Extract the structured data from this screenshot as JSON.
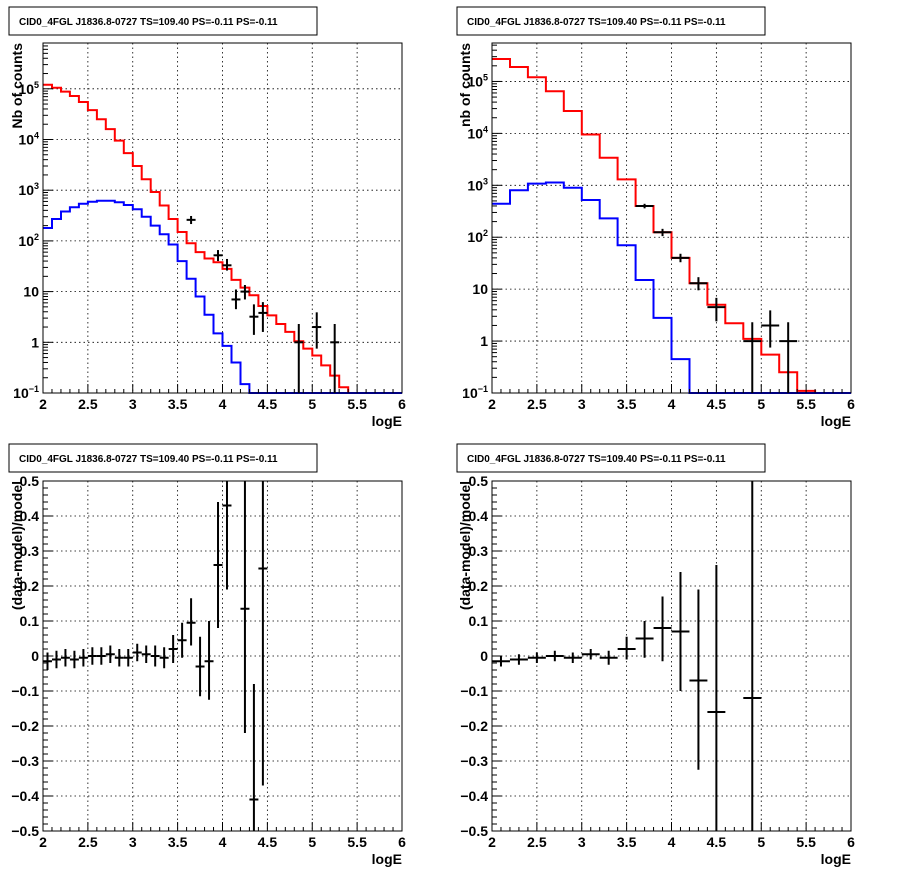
{
  "chart_data": [
    {
      "id": "top-left",
      "type": "line",
      "title": "CID0_4FGL J1836.8-0727 TS=109.40 PS=-0.11 PS=-0.11",
      "xlabel": "logE",
      "ylabel": "Nb of counts",
      "log_y": true,
      "grid": true,
      "xlim": [
        2,
        6
      ],
      "ylim": [
        0.1,
        800000
      ],
      "x_ticks": [
        "2",
        "2.5",
        "3",
        "3.5",
        "4",
        "4.5",
        "5",
        "5.5",
        "6"
      ],
      "y_ticks": [
        {
          "value": 0.1,
          "base": "10",
          "exp": "−1"
        },
        {
          "value": 1,
          "label": "1"
        },
        {
          "value": 10,
          "label": "10"
        },
        {
          "value": 100,
          "base": "10",
          "exp": "2"
        },
        {
          "value": 1000,
          "base": "10",
          "exp": "3"
        },
        {
          "value": 10000,
          "base": "10",
          "exp": "4"
        },
        {
          "value": 100000,
          "base": "10",
          "exp": "5"
        }
      ],
      "bin_edges": [
        2.0,
        2.1,
        2.2,
        2.3,
        2.4,
        2.5,
        2.6,
        2.7,
        2.8,
        2.9,
        3.0,
        3.1,
        3.2,
        3.3,
        3.4,
        3.5,
        3.6,
        3.7,
        3.8,
        3.9,
        4.0,
        4.1,
        4.2,
        4.3,
        4.4,
        4.5,
        4.6,
        4.7,
        4.8,
        4.9,
        5.0,
        5.1,
        5.2,
        5.3,
        5.4,
        5.5,
        5.6,
        5.7,
        5.8,
        5.9,
        6.0
      ],
      "series": [
        {
          "color": "#ff0000",
          "values": [
            120000,
            105000,
            88000,
            72000,
            55000,
            38000,
            25000,
            16000,
            9500,
            5400,
            3000,
            1650,
            920,
            500,
            270,
            150,
            90,
            60,
            45,
            38,
            28,
            17,
            12,
            8.5,
            5.2,
            3.4,
            2.3,
            1.6,
            1.05,
            0.75,
            0.55,
            0.35,
            0.22,
            0.13,
            0.1,
            0.1,
            0.1,
            0.1,
            0.1,
            0.1
          ]
        },
        {
          "color": "#0000ff",
          "values": [
            180,
            270,
            380,
            460,
            540,
            590,
            620,
            620,
            580,
            510,
            420,
            300,
            200,
            135,
            85,
            40,
            18,
            8,
            3.5,
            1.5,
            0.85,
            0.4,
            0.15,
            0.1,
            0.1,
            0.1,
            0.1,
            0.1,
            0.1,
            0.1,
            0.1,
            0.1,
            0.1,
            0.1,
            0.1,
            0.1,
            0.1,
            0.1,
            0.1,
            0.1
          ]
        }
      ],
      "points": [
        {
          "x": 3.65,
          "y": 260,
          "xerr": 0.05,
          "ylo": 215,
          "yhi": 310
        },
        {
          "x": 3.95,
          "y": 52,
          "xerr": 0.05,
          "ylo": 40,
          "yhi": 66
        },
        {
          "x": 4.05,
          "y": 33,
          "xerr": 0.05,
          "ylo": 26,
          "yhi": 44
        },
        {
          "x": 4.15,
          "y": 7,
          "xerr": 0.05,
          "ylo": 4.5,
          "yhi": 11
        },
        {
          "x": 4.25,
          "y": 10,
          "xerr": 0.05,
          "ylo": 7,
          "yhi": 13.5
        },
        {
          "x": 4.35,
          "y": 3.2,
          "xerr": 0.05,
          "ylo": 1.4,
          "yhi": 5.6
        },
        {
          "x": 4.45,
          "y": 3.8,
          "xerr": 0.05,
          "ylo": 1.6,
          "yhi": 6.2
        },
        {
          "x": 4.85,
          "y": 1.0,
          "xerr": 0.05,
          "ylo": 0.1,
          "yhi": 2.3
        },
        {
          "x": 5.05,
          "y": 2.0,
          "xerr": 0.05,
          "ylo": 0.75,
          "yhi": 3.9
        },
        {
          "x": 5.25,
          "y": 1.0,
          "xerr": 0.05,
          "ylo": 0.1,
          "yhi": 2.3
        }
      ]
    },
    {
      "id": "top-right",
      "type": "line",
      "title": "CID0_4FGL J1836.8-0727 TS=109.40 PS=-0.11 PS=-0.11",
      "xlabel": "logE",
      "ylabel": "nb of counts",
      "log_y": true,
      "grid": true,
      "xlim": [
        2,
        6
      ],
      "ylim": [
        0.1,
        550000
      ],
      "x_ticks": [
        "2",
        "2.5",
        "3",
        "3.5",
        "4",
        "4.5",
        "5",
        "5.5",
        "6"
      ],
      "y_ticks": [
        {
          "value": 0.1,
          "base": "10",
          "exp": "−1"
        },
        {
          "value": 1,
          "label": "1"
        },
        {
          "value": 10,
          "label": "10"
        },
        {
          "value": 100,
          "base": "10",
          "exp": "2"
        },
        {
          "value": 1000,
          "base": "10",
          "exp": "3"
        },
        {
          "value": 10000,
          "base": "10",
          "exp": "4"
        },
        {
          "value": 100000,
          "base": "10",
          "exp": "5"
        }
      ],
      "bin_edges": [
        2.0,
        2.2,
        2.4,
        2.6,
        2.8,
        3.0,
        3.2,
        3.4,
        3.6,
        3.8,
        4.0,
        4.2,
        4.4,
        4.6,
        4.8,
        5.0,
        5.2,
        5.4,
        5.6,
        5.8,
        6.0
      ],
      "series": [
        {
          "color": "#ff0000",
          "values": [
            270000,
            190000,
            120000,
            65000,
            27000,
            9500,
            3400,
            1300,
            400,
            125,
            40,
            13,
            5,
            2.2,
            1.1,
            0.55,
            0.25,
            0.11,
            0.1,
            0.1
          ]
        },
        {
          "color": "#0000ff",
          "values": [
            440,
            800,
            1080,
            1130,
            900,
            520,
            230,
            70,
            15,
            2.8,
            0.45,
            0.1,
            0.1,
            0.1,
            0.1,
            0.1,
            0.1,
            0.1,
            0.1,
            0.1
          ]
        }
      ],
      "points": [
        {
          "x": 3.7,
          "y": 400,
          "xerr": 0.1,
          "ylo": 360,
          "yhi": 440
        },
        {
          "x": 3.9,
          "y": 125,
          "xerr": 0.1,
          "ylo": 105,
          "yhi": 145
        },
        {
          "x": 4.1,
          "y": 40,
          "xerr": 0.1,
          "ylo": 33,
          "yhi": 48
        },
        {
          "x": 4.3,
          "y": 13,
          "xerr": 0.1,
          "ylo": 9.5,
          "yhi": 17
        },
        {
          "x": 4.5,
          "y": 4.5,
          "xerr": 0.1,
          "ylo": 2.4,
          "yhi": 6.8
        },
        {
          "x": 4.9,
          "y": 1.0,
          "xerr": 0.1,
          "ylo": 0.1,
          "yhi": 2.3
        },
        {
          "x": 5.1,
          "y": 2.0,
          "xerr": 0.1,
          "ylo": 0.75,
          "yhi": 3.9
        },
        {
          "x": 5.3,
          "y": 1.0,
          "xerr": 0.1,
          "ylo": 0.1,
          "yhi": 2.3
        }
      ]
    },
    {
      "id": "bottom-left",
      "type": "scatter",
      "title": "CID0_4FGL J1836.8-0727 TS=109.40 PS=-0.11 PS=-0.11",
      "xlabel": "logE",
      "ylabel": "(data-model)/model",
      "log_y": false,
      "grid": true,
      "xlim": [
        2,
        6
      ],
      "ylim": [
        -0.5,
        0.5
      ],
      "x_ticks": [
        "2",
        "2.5",
        "3",
        "3.5",
        "4",
        "4.5",
        "5",
        "5.5",
        "6"
      ],
      "y_ticks": [
        {
          "value": -0.5,
          "label": "−0.5"
        },
        {
          "value": -0.4,
          "label": "−0.4"
        },
        {
          "value": -0.3,
          "label": "−0.3"
        },
        {
          "value": -0.2,
          "label": "−0.2"
        },
        {
          "value": -0.1,
          "label": "−0.1"
        },
        {
          "value": 0,
          "label": "0"
        },
        {
          "value": 0.1,
          "label": "0.1"
        },
        {
          "value": 0.2,
          "label": "0.2"
        },
        {
          "value": 0.3,
          "label": "0.3"
        },
        {
          "value": 0.4,
          "label": "0.4"
        },
        {
          "value": 0.5,
          "label": "0.5"
        }
      ],
      "points": [
        {
          "x": 2.05,
          "y": -0.015,
          "xerr": 0.05,
          "ylo": -0.04,
          "yhi": 0.01
        },
        {
          "x": 2.15,
          "y": -0.01,
          "xerr": 0.05,
          "ylo": -0.035,
          "yhi": 0.015
        },
        {
          "x": 2.25,
          "y": -0.005,
          "xerr": 0.05,
          "ylo": -0.03,
          "yhi": 0.02
        },
        {
          "x": 2.35,
          "y": -0.01,
          "xerr": 0.05,
          "ylo": -0.035,
          "yhi": 0.015
        },
        {
          "x": 2.45,
          "y": -0.005,
          "xerr": 0.05,
          "ylo": -0.03,
          "yhi": 0.02
        },
        {
          "x": 2.55,
          "y": 0.0,
          "xerr": 0.05,
          "ylo": -0.025,
          "yhi": 0.025
        },
        {
          "x": 2.65,
          "y": 0.0,
          "xerr": 0.05,
          "ylo": -0.025,
          "yhi": 0.025
        },
        {
          "x": 2.75,
          "y": 0.005,
          "xerr": 0.05,
          "ylo": -0.02,
          "yhi": 0.03
        },
        {
          "x": 2.85,
          "y": -0.005,
          "xerr": 0.05,
          "ylo": -0.03,
          "yhi": 0.02
        },
        {
          "x": 2.95,
          "y": -0.005,
          "xerr": 0.05,
          "ylo": -0.03,
          "yhi": 0.02
        },
        {
          "x": 3.05,
          "y": 0.01,
          "xerr": 0.05,
          "ylo": -0.015,
          "yhi": 0.035
        },
        {
          "x": 3.15,
          "y": 0.005,
          "xerr": 0.05,
          "ylo": -0.02,
          "yhi": 0.03
        },
        {
          "x": 3.25,
          "y": 0.0,
          "xerr": 0.05,
          "ylo": -0.03,
          "yhi": 0.03
        },
        {
          "x": 3.35,
          "y": -0.005,
          "xerr": 0.05,
          "ylo": -0.035,
          "yhi": 0.025
        },
        {
          "x": 3.45,
          "y": 0.02,
          "xerr": 0.05,
          "ylo": -0.02,
          "yhi": 0.06
        },
        {
          "x": 3.55,
          "y": 0.045,
          "xerr": 0.05,
          "ylo": -0.005,
          "yhi": 0.095
        },
        {
          "x": 3.65,
          "y": 0.095,
          "xerr": 0.05,
          "ylo": 0.03,
          "yhi": 0.165
        },
        {
          "x": 3.75,
          "y": -0.03,
          "xerr": 0.05,
          "ylo": -0.115,
          "yhi": 0.055
        },
        {
          "x": 3.85,
          "y": -0.015,
          "xerr": 0.05,
          "ylo": -0.125,
          "yhi": 0.1
        },
        {
          "x": 3.95,
          "y": 0.26,
          "xerr": 0.05,
          "ylo": 0.08,
          "yhi": 0.44
        },
        {
          "x": 4.05,
          "y": 0.43,
          "xerr": 0.05,
          "ylo": 0.19,
          "yhi": 0.5
        },
        {
          "x": 4.25,
          "y": 0.135,
          "xerr": 0.05,
          "ylo": -0.22,
          "yhi": 0.5
        },
        {
          "x": 4.35,
          "y": -0.41,
          "xerr": 0.05,
          "ylo": -0.5,
          "yhi": -0.08
        },
        {
          "x": 4.45,
          "y": 0.25,
          "xerr": 0.05,
          "ylo": -0.37,
          "yhi": 0.5
        }
      ]
    },
    {
      "id": "bottom-right",
      "type": "scatter",
      "title": "CID0_4FGL J1836.8-0727 TS=109.40 PS=-0.11 PS=-0.11",
      "xlabel": "logE",
      "ylabel": "(data-model)/model",
      "log_y": false,
      "grid": true,
      "xlim": [
        2,
        6
      ],
      "ylim": [
        -0.5,
        0.5
      ],
      "x_ticks": [
        "2",
        "2.5",
        "3",
        "3.5",
        "4",
        "4.5",
        "5",
        "5.5",
        "6"
      ],
      "y_ticks": [
        {
          "value": -0.5,
          "label": "−0.5"
        },
        {
          "value": -0.4,
          "label": "−0.4"
        },
        {
          "value": -0.3,
          "label": "−0.3"
        },
        {
          "value": -0.2,
          "label": "−0.2"
        },
        {
          "value": -0.1,
          "label": "−0.1"
        },
        {
          "value": 0,
          "label": "0"
        },
        {
          "value": 0.1,
          "label": "0.1"
        },
        {
          "value": 0.2,
          "label": "0.2"
        },
        {
          "value": 0.3,
          "label": "0.3"
        },
        {
          "value": 0.4,
          "label": "0.4"
        },
        {
          "value": 0.5,
          "label": "0.5"
        }
      ],
      "points": [
        {
          "x": 2.1,
          "y": -0.015,
          "xerr": 0.1,
          "ylo": -0.03,
          "yhi": 0.0
        },
        {
          "x": 2.3,
          "y": -0.01,
          "xerr": 0.1,
          "ylo": -0.025,
          "yhi": 0.005
        },
        {
          "x": 2.5,
          "y": -0.005,
          "xerr": 0.1,
          "ylo": -0.02,
          "yhi": 0.01
        },
        {
          "x": 2.7,
          "y": 0.0,
          "xerr": 0.1,
          "ylo": -0.015,
          "yhi": 0.015
        },
        {
          "x": 2.9,
          "y": -0.005,
          "xerr": 0.1,
          "ylo": -0.02,
          "yhi": 0.01
        },
        {
          "x": 3.1,
          "y": 0.005,
          "xerr": 0.1,
          "ylo": -0.01,
          "yhi": 0.02
        },
        {
          "x": 3.3,
          "y": -0.005,
          "xerr": 0.1,
          "ylo": -0.025,
          "yhi": 0.015
        },
        {
          "x": 3.5,
          "y": 0.02,
          "xerr": 0.1,
          "ylo": -0.01,
          "yhi": 0.055
        },
        {
          "x": 3.7,
          "y": 0.05,
          "xerr": 0.1,
          "ylo": -0.005,
          "yhi": 0.1
        },
        {
          "x": 3.9,
          "y": 0.08,
          "xerr": 0.1,
          "ylo": -0.015,
          "yhi": 0.17
        },
        {
          "x": 4.1,
          "y": 0.07,
          "xerr": 0.1,
          "ylo": -0.1,
          "yhi": 0.24
        },
        {
          "x": 4.3,
          "y": -0.07,
          "xerr": 0.1,
          "ylo": -0.325,
          "yhi": 0.19
        },
        {
          "x": 4.5,
          "y": -0.16,
          "xerr": 0.1,
          "ylo": -0.5,
          "yhi": 0.26
        },
        {
          "x": 4.9,
          "y": -0.12,
          "xerr": 0.1,
          "ylo": -0.5,
          "yhi": 0.5
        }
      ]
    }
  ]
}
